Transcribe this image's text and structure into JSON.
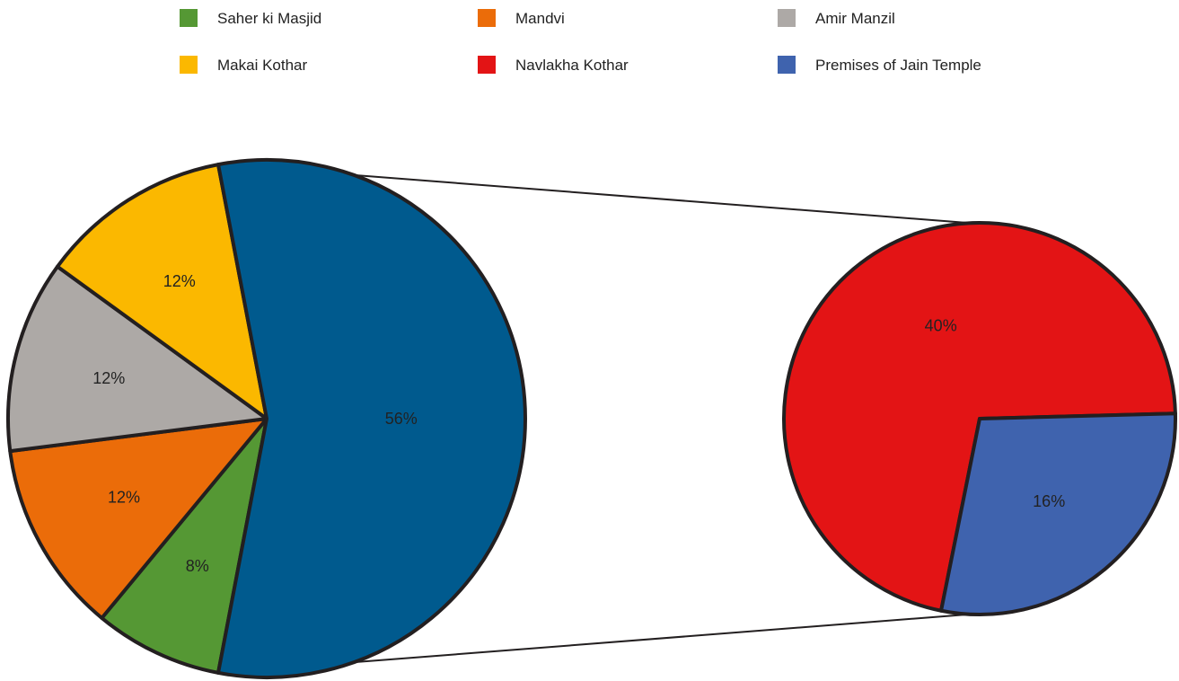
{
  "chart_data": {
    "type": "pie",
    "main_pie": {
      "slices": [
        {
          "name": "Saher ki Masjid",
          "value": 8,
          "label": "8%",
          "color": "#559834"
        },
        {
          "name": "Mandvi",
          "value": 12,
          "label": "12%",
          "color": "#EB6C09"
        },
        {
          "name": "Amir Manzil",
          "value": 12,
          "label": "12%",
          "color": "#ADA9A6"
        },
        {
          "name": "Makai Kothar",
          "value": 12,
          "label": "12%",
          "color": "#FBB800"
        },
        {
          "name": "",
          "value": 56,
          "label": "56%",
          "color": "#005A8E",
          "expanded": true
        }
      ]
    },
    "secondary_pie": {
      "slices": [
        {
          "name": "Navlakha Kothar",
          "value": 40,
          "label": "40%",
          "color": "#E31415"
        },
        {
          "name": "Premises of Jain Temple",
          "value": 16,
          "label": "16%",
          "color": "#3F63AE"
        }
      ]
    },
    "legend": {
      "placement": "top",
      "items": [
        {
          "label": "Saher ki Masjid",
          "color": "#559834"
        },
        {
          "label": "Mandvi",
          "color": "#EB6C09"
        },
        {
          "label": "Amir Manzil",
          "color": "#ADA9A6"
        },
        {
          "label": "Makai Kothar",
          "color": "#FBB800"
        },
        {
          "label": "Navlakha Kothar",
          "color": "#E31415"
        },
        {
          "label": "Premises of Jain Temple",
          "color": "#3F63AE"
        }
      ]
    },
    "outline_color": "#231F20"
  }
}
